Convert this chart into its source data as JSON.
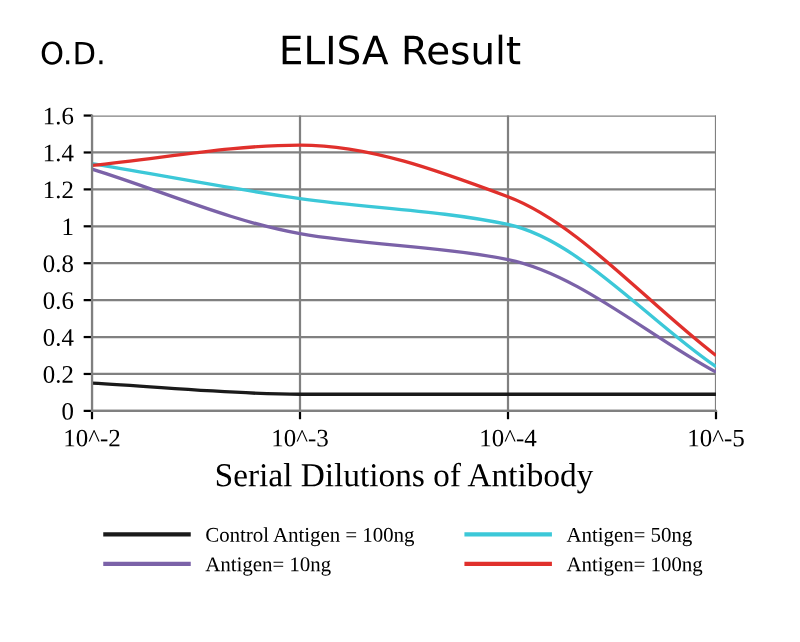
{
  "chart_data": {
    "type": "line",
    "title": "ELISA Result",
    "ylabel": "O.D.",
    "xlabel": "Serial Dilutions of Antibody",
    "categories": [
      "10^-2",
      "10^-3",
      "10^-4",
      "10^-5"
    ],
    "series": [
      {
        "name": "Control Antigen = 100ng",
        "color": "#1a1a1a",
        "values": [
          0.15,
          0.09,
          0.09,
          0.09
        ]
      },
      {
        "name": "Antigen= 10ng",
        "color": "#7b62a8",
        "values": [
          1.31,
          0.96,
          0.82,
          0.21
        ]
      },
      {
        "name": "Antigen= 50ng",
        "color": "#3cc8d8",
        "values": [
          1.34,
          1.15,
          1.01,
          0.24
        ]
      },
      {
        "name": "Antigen= 100ng",
        "color": "#e0302c",
        "values": [
          1.33,
          1.44,
          1.16,
          0.3
        ]
      }
    ],
    "ylim": [
      0,
      1.6
    ],
    "yticks": [
      0,
      0.2,
      0.4,
      0.6,
      0.8,
      1,
      1.2,
      1.4,
      1.6
    ],
    "grid": true,
    "legend": "bottom",
    "marker": "none",
    "line_style": "solid"
  }
}
